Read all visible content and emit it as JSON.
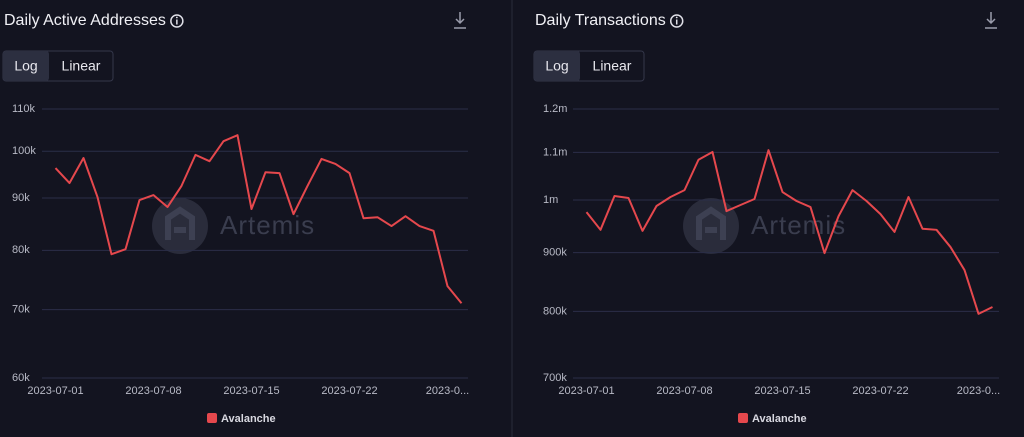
{
  "chart_data": [
    {
      "type": "line",
      "title": "Daily Active Addresses",
      "scale_buttons": [
        "Log",
        "Linear"
      ],
      "active_scale": "Log",
      "log_scale": true,
      "grid": true,
      "watermark": "Artemis",
      "legend_position": "bottom",
      "x": [
        "2023-07-01",
        "2023-07-02",
        "2023-07-03",
        "2023-07-04",
        "2023-07-05",
        "2023-07-06",
        "2023-07-07",
        "2023-07-08",
        "2023-07-09",
        "2023-07-10",
        "2023-07-11",
        "2023-07-12",
        "2023-07-13",
        "2023-07-14",
        "2023-07-15",
        "2023-07-16",
        "2023-07-17",
        "2023-07-18",
        "2023-07-19",
        "2023-07-20",
        "2023-07-21",
        "2023-07-22",
        "2023-07-23",
        "2023-07-24",
        "2023-07-25",
        "2023-07-26",
        "2023-07-27",
        "2023-07-28",
        "2023-07-29",
        "2023-07-30"
      ],
      "xticks": [
        "2023-07-01",
        "2023-07-08",
        "2023-07-15",
        "2023-07-22",
        "2023-0..."
      ],
      "series": [
        {
          "name": "Avalanche",
          "color": "#e5484d",
          "values": [
            96300,
            93100,
            98500,
            90200,
            79300,
            80200,
            89600,
            90600,
            88200,
            92500,
            99200,
            97800,
            102300,
            103700,
            87800,
            95400,
            95200,
            86800,
            92500,
            98300,
            97200,
            95200,
            86000,
            86200,
            84500,
            86400,
            84500,
            83600,
            73800,
            71000
          ]
        }
      ],
      "ylim": [
        60000,
        110000
      ],
      "yticks": [
        {
          "value": 60000,
          "label": "60k"
        },
        {
          "value": 70000,
          "label": "70k"
        },
        {
          "value": 80000,
          "label": "80k"
        },
        {
          "value": 90000,
          "label": "90k"
        },
        {
          "value": 100000,
          "label": "100k"
        },
        {
          "value": 110000,
          "label": "110k"
        }
      ]
    },
    {
      "type": "line",
      "title": "Daily Transactions",
      "scale_buttons": [
        "Log",
        "Linear"
      ],
      "active_scale": "Log",
      "log_scale": true,
      "grid": true,
      "watermark": "Artemis",
      "legend_position": "bottom",
      "x": [
        "2023-07-01",
        "2023-07-02",
        "2023-07-03",
        "2023-07-04",
        "2023-07-05",
        "2023-07-06",
        "2023-07-07",
        "2023-07-08",
        "2023-07-09",
        "2023-07-10",
        "2023-07-11",
        "2023-07-12",
        "2023-07-13",
        "2023-07-14",
        "2023-07-15",
        "2023-07-16",
        "2023-07-17",
        "2023-07-18",
        "2023-07-19",
        "2023-07-20",
        "2023-07-21",
        "2023-07-22",
        "2023-07-23",
        "2023-07-24",
        "2023-07-25",
        "2023-07-26",
        "2023-07-27",
        "2023-07-28",
        "2023-07-29",
        "2023-07-30"
      ],
      "xticks": [
        "2023-07-01",
        "2023-07-08",
        "2023-07-15",
        "2023-07-22",
        "2023-0..."
      ],
      "series": [
        {
          "name": "Avalanche",
          "color": "#e5484d",
          "values": [
            976000,
            942000,
            1008000,
            1004000,
            940000,
            988000,
            1006000,
            1020000,
            1084000,
            1101000,
            978000,
            990000,
            1002000,
            1105000,
            1016000,
            998000,
            986000,
            899000,
            968000,
            1020000,
            998000,
            972000,
            938000,
            1006000,
            944000,
            942000,
            910000,
            869000,
            796000,
            807000
          ]
        }
      ],
      "ylim": [
        700000,
        1200000
      ],
      "yticks": [
        {
          "value": 700000,
          "label": "700k"
        },
        {
          "value": 800000,
          "label": "800k"
        },
        {
          "value": 900000,
          "label": "900k"
        },
        {
          "value": 1000000,
          "label": "1m"
        },
        {
          "value": 1100000,
          "label": "1.1m"
        },
        {
          "value": 1200000,
          "label": "1.2m"
        }
      ]
    }
  ]
}
